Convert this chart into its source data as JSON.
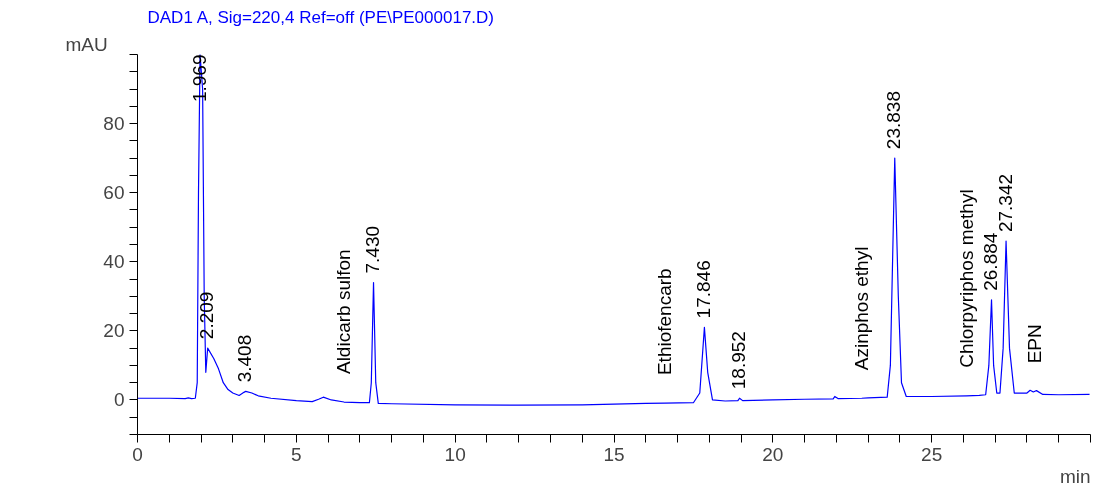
{
  "chart_data": {
    "type": "line",
    "title": "DAD1 A, Sig=220,4 Ref=off (PE\\PE000017.D)",
    "xlabel": "min",
    "ylabel": "mAU",
    "xlim": [
      0,
      30
    ],
    "ylim": [
      -10,
      100
    ],
    "xticks": [
      0,
      {
        "value": 1,
        "label": null
      },
      {
        "value": 2,
        "label": null
      },
      {
        "value": 3,
        "label": null
      },
      {
        "value": 4,
        "label": null
      },
      5,
      {
        "value": 6,
        "label": null
      },
      {
        "value": 7,
        "label": null
      },
      {
        "value": 8,
        "label": null
      },
      {
        "value": 9,
        "label": null
      },
      10,
      {
        "value": 11,
        "label": null
      },
      {
        "value": 12,
        "label": null
      },
      {
        "value": 13,
        "label": null
      },
      {
        "value": 14,
        "label": null
      },
      15,
      {
        "value": 16,
        "label": null
      },
      {
        "value": 17,
        "label": null
      },
      {
        "value": 18,
        "label": null
      },
      {
        "value": 19,
        "label": null
      },
      20,
      {
        "value": 21,
        "label": null
      },
      {
        "value": 22,
        "label": null
      },
      {
        "value": 23,
        "label": null
      },
      {
        "value": 24,
        "label": null
      },
      25,
      {
        "value": 26,
        "label": null
      },
      {
        "value": 27,
        "label": null
      },
      {
        "value": 28,
        "label": null
      },
      {
        "value": 29,
        "label": null
      },
      {
        "value": 30,
        "label": null
      }
    ],
    "yticks": [
      {
        "value": -10,
        "label": null
      },
      {
        "value": -5,
        "label": null
      },
      0,
      {
        "value": 5,
        "label": null
      },
      {
        "value": 10,
        "label": null
      },
      {
        "value": 15,
        "label": null
      },
      20,
      {
        "value": 25,
        "label": null
      },
      {
        "value": 30,
        "label": null
      },
      {
        "value": 35,
        "label": null
      },
      40,
      {
        "value": 45,
        "label": null
      },
      {
        "value": 50,
        "label": null
      },
      {
        "value": 55,
        "label": null
      },
      60,
      {
        "value": 65,
        "label": null
      },
      {
        "value": 70,
        "label": null
      },
      {
        "value": 75,
        "label": null
      },
      80,
      {
        "value": 85,
        "label": null
      },
      {
        "value": 90,
        "label": null
      },
      {
        "value": 95,
        "label": null
      },
      {
        "value": 100,
        "label": null
      }
    ],
    "grid": false,
    "marker": "none",
    "line_style": "solid",
    "series": [
      {
        "color": "#0000ff",
        "x": [
          0,
          1.0,
          1.5,
          1.6,
          1.7,
          1.82,
          1.88,
          1.92,
          1.969,
          2.05,
          2.1,
          2.15,
          2.209,
          2.4,
          2.55,
          2.7,
          2.85,
          3.0,
          3.2,
          3.35,
          3.408,
          3.6,
          3.8,
          4.2,
          5.0,
          5.5,
          5.7,
          5.85,
          6.1,
          6.5,
          7.0,
          7.3,
          7.36,
          7.43,
          7.5,
          7.58,
          8.0,
          10,
          12,
          14,
          16,
          16.6,
          17.5,
          17.7,
          17.846,
          17.95,
          18.1,
          18.5,
          18.9,
          18.952,
          19.05,
          20,
          21,
          21.9,
          21.95,
          22.05,
          22.8,
          23,
          23.6,
          23.7,
          23.838,
          23.95,
          24.05,
          24.2,
          25,
          26.1,
          26.5,
          26.7,
          26.8,
          26.884,
          26.95,
          27.05,
          27.15,
          27.25,
          27.342,
          27.45,
          27.6,
          28.0,
          28.1,
          28.2,
          28.25,
          28.3,
          28.5,
          29,
          29.97
        ],
        "values": [
          0.5,
          0.5,
          0.4,
          0.6,
          0.4,
          0.5,
          5,
          60,
          100,
          90,
          30,
          8,
          15,
          12,
          9,
          5,
          3,
          2,
          1.3,
          2.2,
          2.5,
          2,
          1.2,
          0.5,
          -0.2,
          -0.5,
          0.2,
          0.8,
          0,
          -0.6,
          -0.8,
          -0.8,
          5,
          34,
          5,
          -1,
          -1.1,
          -1.4,
          -1.5,
          -1.4,
          -1.0,
          -0.9,
          -0.8,
          2,
          21,
          8,
          0,
          -0.3,
          -0.2,
          0.5,
          -0.2,
          0,
          0.2,
          0.3,
          1,
          0.4,
          0.5,
          0.6,
          0.8,
          10,
          70,
          30,
          5,
          1,
          1,
          1.2,
          1.3,
          1.5,
          10,
          29,
          10,
          2,
          2,
          15,
          46,
          15,
          2,
          2,
          2.8,
          2.3,
          2.5,
          2.7,
          1.6,
          1.5,
          1.6
        ]
      }
    ],
    "annotations": [
      {
        "text": "1.969",
        "x": 1.969,
        "y": 100
      },
      {
        "text": "2.209",
        "x": 2.209,
        "y": 15
      },
      {
        "text": "3.408",
        "x": 3.408,
        "y": 2.5
      },
      {
        "text": "Aldicarb sulfon",
        "x": 6.5,
        "y": -0.6
      },
      {
        "text": "7.430",
        "x": 7.43,
        "y": 34
      },
      {
        "text": "Ethiofencarb",
        "x": 16.6,
        "y": -0.9
      },
      {
        "text": "17.846",
        "x": 17.846,
        "y": 21
      },
      {
        "text": "18.952",
        "x": 18.952,
        "y": 0.5
      },
      {
        "text": "Azinphos ethyl",
        "x": 22.8,
        "y": 0.5
      },
      {
        "text": "23.838",
        "x": 23.838,
        "y": 70
      },
      {
        "text": "Chlorpyriphos methyl",
        "x": 26.1,
        "y": 1.2
      },
      {
        "text": "26.884",
        "x": 26.884,
        "y": 29
      },
      {
        "text": "27.342",
        "x": 27.342,
        "y": 46
      },
      {
        "text": "EPN",
        "x": 28.25,
        "y": 2.5
      }
    ]
  }
}
